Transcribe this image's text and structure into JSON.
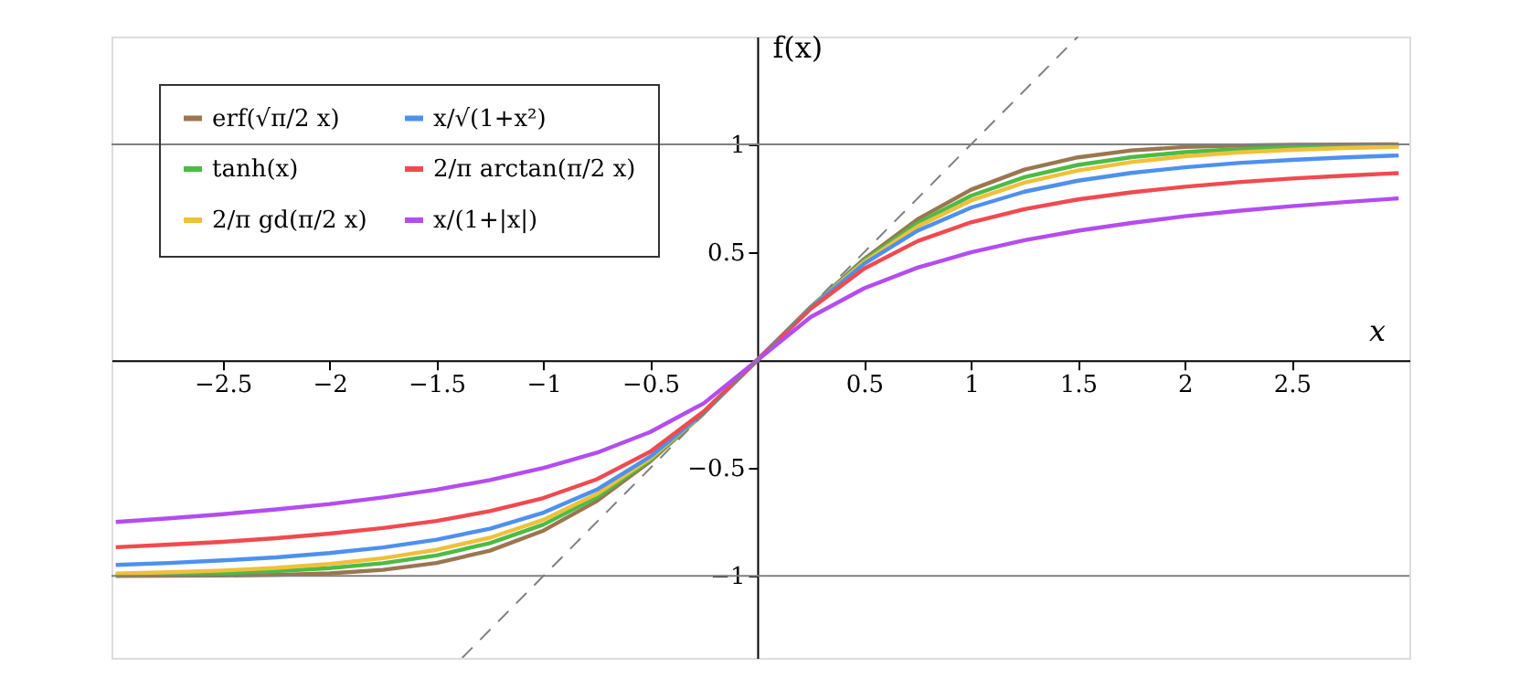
{
  "chart_data": {
    "type": "line",
    "x": [
      -3,
      -2.75,
      -2.5,
      -2.25,
      -2,
      -1.75,
      -1.5,
      -1.25,
      -1,
      -0.75,
      -0.5,
      -0.25,
      0,
      0.25,
      0.5,
      0.75,
      1,
      1.25,
      1.5,
      1.75,
      2,
      2.25,
      2.5,
      2.75,
      3
    ],
    "series": [
      {
        "name": "erf(√π/2 x)",
        "color": "#9b7650",
        "values": [
          -1.0,
          -0.999,
          -0.998,
          -0.995,
          -0.988,
          -0.972,
          -0.94,
          -0.883,
          -0.79,
          -0.653,
          -0.469,
          -0.246,
          0,
          0.246,
          0.469,
          0.653,
          0.79,
          0.883,
          0.94,
          0.972,
          0.988,
          0.995,
          0.998,
          0.999,
          1.0
        ]
      },
      {
        "name": "tanh(x)",
        "color": "#4cbb47",
        "values": [
          -0.995,
          -0.992,
          -0.987,
          -0.978,
          -0.964,
          -0.941,
          -0.905,
          -0.848,
          -0.762,
          -0.635,
          -0.462,
          -0.245,
          0,
          0.245,
          0.462,
          0.635,
          0.762,
          0.848,
          0.905,
          0.941,
          0.964,
          0.978,
          0.987,
          0.992,
          0.995
        ]
      },
      {
        "name": "2/π gd(π/2 x)",
        "color": "#f0c03a",
        "values": [
          -0.989,
          -0.983,
          -0.975,
          -0.963,
          -0.945,
          -0.918,
          -0.879,
          -0.823,
          -0.74,
          -0.62,
          -0.455,
          -0.244,
          0,
          0.244,
          0.455,
          0.62,
          0.74,
          0.823,
          0.879,
          0.918,
          0.945,
          0.963,
          0.975,
          0.983,
          0.989
        ]
      },
      {
        "name": "x/√(1+x²)",
        "color": "#4d90f0",
        "values": [
          -0.949,
          -0.94,
          -0.928,
          -0.914,
          -0.894,
          -0.868,
          -0.832,
          -0.781,
          -0.707,
          -0.6,
          -0.447,
          -0.243,
          0,
          0.243,
          0.447,
          0.6,
          0.707,
          0.781,
          0.832,
          0.868,
          0.894,
          0.914,
          0.928,
          0.94,
          0.949
        ]
      },
      {
        "name": "2/π arctan(π/2 x)",
        "color": "#f04a4f",
        "values": [
          -0.867,
          -0.855,
          -0.842,
          -0.825,
          -0.804,
          -0.778,
          -0.745,
          -0.7,
          -0.639,
          -0.552,
          -0.424,
          -0.238,
          0,
          0.238,
          0.424,
          0.552,
          0.639,
          0.7,
          0.745,
          0.778,
          0.804,
          0.825,
          0.842,
          0.855,
          0.867
        ]
      },
      {
        "name": "x/(1+|x|)",
        "color": "#b44cf0",
        "values": [
          -0.75,
          -0.733,
          -0.714,
          -0.692,
          -0.667,
          -0.636,
          -0.6,
          -0.556,
          -0.5,
          -0.429,
          -0.333,
          -0.2,
          0,
          0.2,
          0.333,
          0.429,
          0.5,
          0.556,
          0.6,
          0.636,
          0.667,
          0.692,
          0.714,
          0.733,
          0.75
        ]
      },
      {
        "type": "line",
        "color": "#808080",
        "line_style": "dashed",
        "x": [
          -1.38,
          1.5
        ],
        "values": [
          -1.38,
          1.5
        ]
      }
    ],
    "xlabel": "x",
    "ylabel": "f(x)",
    "xlim": [
      -3.02,
      3.05
    ],
    "ylim": [
      -1.38,
      1.5
    ],
    "xticks": [
      -2.5,
      -2,
      -1.5,
      -1,
      -0.5,
      0.5,
      1,
      1.5,
      2,
      2.5
    ],
    "yticks": [
      -1,
      -0.5,
      0.5,
      1
    ],
    "ref_lines": [
      {
        "axis": "y",
        "value": 1,
        "color": "#808080"
      },
      {
        "axis": "y",
        "value": -1,
        "color": "#808080"
      }
    ],
    "grid": false,
    "legend": "top left"
  }
}
